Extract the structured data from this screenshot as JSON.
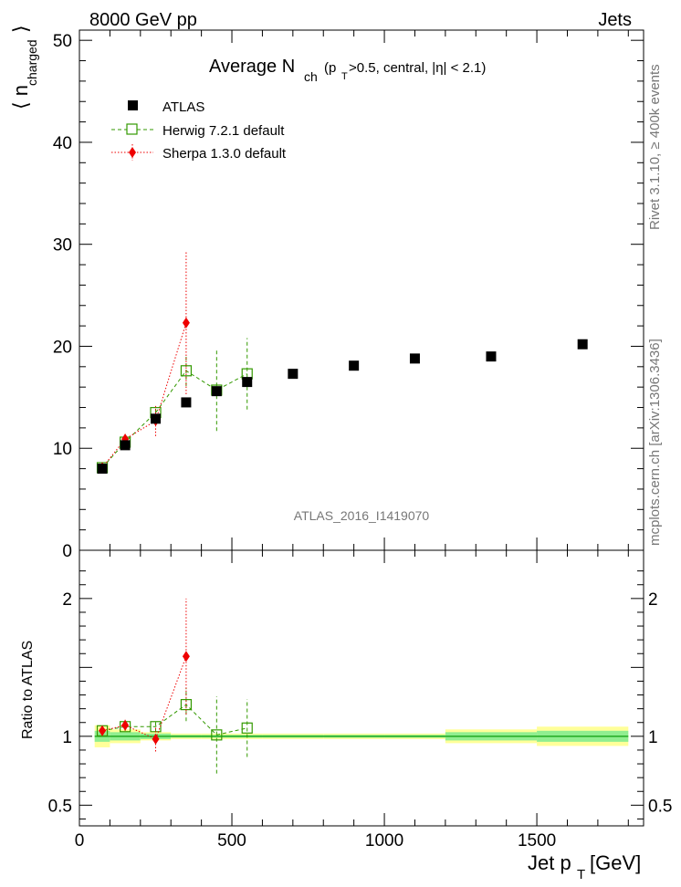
{
  "header": {
    "energy_label": "8000 GeV pp",
    "category_label": "Jets"
  },
  "side_text": {
    "rivet": "Rivet 3.1.10,  ≥ 400k events",
    "mcplots": "mcplots.cern.ch [arXiv:1306.3436]"
  },
  "chart_data": [
    {
      "type": "scatter",
      "title_main": "Average N",
      "title_sub": "ch",
      "title_rest": "(p",
      "title_rest_sub": "T",
      "title_tail": ">0.5, central, |η| < 2.1)",
      "ylabel_main": "⟨ n",
      "ylabel_sub": "charged",
      "ylabel_close": "⟩",
      "watermark": "ATLAS_2016_I1419070",
      "xlim": [
        0,
        1850
      ],
      "ylim": [
        0,
        51
      ],
      "yticks": [
        0,
        10,
        20,
        30,
        40,
        50
      ],
      "legend_position": "top-left",
      "series": [
        {
          "name": "ATLAS",
          "marker": "filled-square",
          "color": "#000000",
          "x": [
            75,
            150,
            250,
            350,
            450,
            550,
            700,
            900,
            1100,
            1350,
            1650
          ],
          "y": [
            8.0,
            10.3,
            12.9,
            14.5,
            15.6,
            16.5,
            17.3,
            18.1,
            18.8,
            19.0,
            20.2
          ],
          "yerr": [
            0.1,
            0.1,
            0.1,
            0.1,
            0.1,
            0.1,
            0.1,
            0.1,
            0.1,
            0.2,
            0.3
          ]
        },
        {
          "name": "Herwig 7.2.1 default",
          "marker": "open-square",
          "color": "#339900",
          "line": "dashed",
          "x": [
            75,
            150,
            250,
            350,
            450,
            550
          ],
          "y": [
            8.1,
            10.6,
            13.5,
            17.6,
            15.7,
            17.3
          ],
          "yerr": [
            0.3,
            0.4,
            0.6,
            1.5,
            4.0,
            3.5
          ]
        },
        {
          "name": "Sherpa 1.3.0 default",
          "marker": "filled-diamond",
          "color": "#ee0000",
          "line": "dotted",
          "x": [
            75,
            150,
            250,
            350
          ],
          "y": [
            8.1,
            10.9,
            12.7,
            22.3
          ],
          "yerr": [
            0.3,
            0.5,
            1.5,
            7.0
          ]
        }
      ]
    },
    {
      "type": "scatter",
      "ylabel": "Ratio to ATLAS",
      "xlabel_main": "Jet p",
      "xlabel_sub": "T",
      "xlabel_unit": "[GeV]",
      "xlim": [
        0,
        1850
      ],
      "ylim": [
        0.35,
        2.35
      ],
      "yticks": [
        0.5,
        1,
        1.5,
        2
      ],
      "ytick_labels": [
        "0.5",
        "1",
        "",
        "2"
      ],
      "xticks": [
        0,
        500,
        1000,
        1500
      ],
      "xtick_labels": [
        "0",
        "500",
        "1000",
        "1500"
      ],
      "bands": {
        "edges": [
          50,
          100,
          200,
          300,
          400,
          500,
          600,
          800,
          1000,
          1200,
          1500,
          1800
        ],
        "green_half_width": [
          0.04,
          0.03,
          0.02,
          0.01,
          0.01,
          0.01,
          0.01,
          0.01,
          0.01,
          0.03,
          0.04
        ],
        "yellow_half_width": [
          0.08,
          0.05,
          0.03,
          0.02,
          0.02,
          0.02,
          0.02,
          0.02,
          0.02,
          0.05,
          0.07
        ],
        "green_color": "#90ee90",
        "yellow_color": "#ffff99",
        "center_line_color": "#22aa22"
      },
      "series": [
        {
          "name": "Herwig 7.2.1 default",
          "x": [
            75,
            150,
            250,
            350,
            450,
            550
          ],
          "y": [
            1.04,
            1.07,
            1.07,
            1.23,
            1.01,
            1.06
          ],
          "yerr": [
            0.03,
            0.03,
            0.04,
            0.12,
            0.28,
            0.21
          ]
        },
        {
          "name": "Sherpa 1.3.0 default",
          "x": [
            75,
            150,
            250,
            350
          ],
          "y": [
            1.04,
            1.08,
            0.98,
            1.58
          ],
          "yerr": [
            0.03,
            0.04,
            0.09,
            0.42
          ]
        }
      ]
    }
  ]
}
